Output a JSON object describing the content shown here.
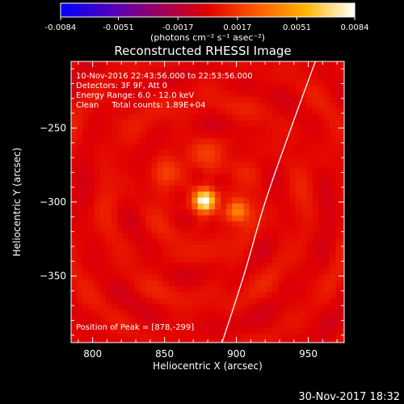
{
  "chart_data": {
    "type": "heatmap",
    "title": "Reconstructed RHESSI Image",
    "xlabel": "Heliocentric X (arcsec)",
    "ylabel": "Heliocentric Y (arcsec)",
    "xlim": [
      785,
      975
    ],
    "ylim": [
      -395,
      -205
    ],
    "x_ticks": [
      800,
      850,
      900,
      950
    ],
    "y_ticks": [
      -250,
      -300,
      -350
    ],
    "colorbar": {
      "range": [
        -0.0084,
        0.0084
      ],
      "tick_values": [
        -0.0084,
        -0.0051,
        -0.0017,
        0.0017,
        0.0051,
        0.0084
      ],
      "tick_labels": [
        "-0.0084",
        "-0.0051",
        "-0.0017",
        "0.0017",
        "0.0051",
        "0.0084"
      ],
      "units": "(photons cm⁻² s⁻¹ asec⁻²)",
      "colormap": [
        "#0000ff",
        "#5000c0",
        "#9a0060",
        "#e00000",
        "#ff5a00",
        "#ffb400",
        "#ffffff"
      ]
    },
    "annotations": [
      "10-Nov-2016 22:43:56.000 to 22:53:56.000",
      "Detectors: 3F 9F, Att 0",
      "Energy Range: 6.0 - 12.0 keV",
      "Clean     Total counts: 1.89E+04"
    ],
    "peak_label": "Position of Peak = [878,-299]",
    "peak": {
      "x": 878,
      "y": -299,
      "value": 0.0084
    },
    "sources": [
      {
        "x": 878,
        "y": -299,
        "value": 0.0084,
        "sigma": 5
      },
      {
        "x": 900,
        "y": -306,
        "value": 0.0045,
        "sigma": 5
      },
      {
        "x": 854,
        "y": -280,
        "value": 0.0012,
        "sigma": 6
      },
      {
        "x": 880,
        "y": -272,
        "value": 0.001,
        "sigma": 7
      }
    ],
    "background_level": 0.0008,
    "limb_curve": [
      [
        890,
        -395
      ],
      [
        905,
        -350
      ],
      [
        920,
        -300
      ],
      [
        938,
        -250
      ],
      [
        953,
        -210
      ],
      [
        958,
        -198
      ]
    ],
    "limb_color": "#ffffff"
  },
  "footer": {
    "timestamp": "30-Nov-2017 18:32"
  }
}
